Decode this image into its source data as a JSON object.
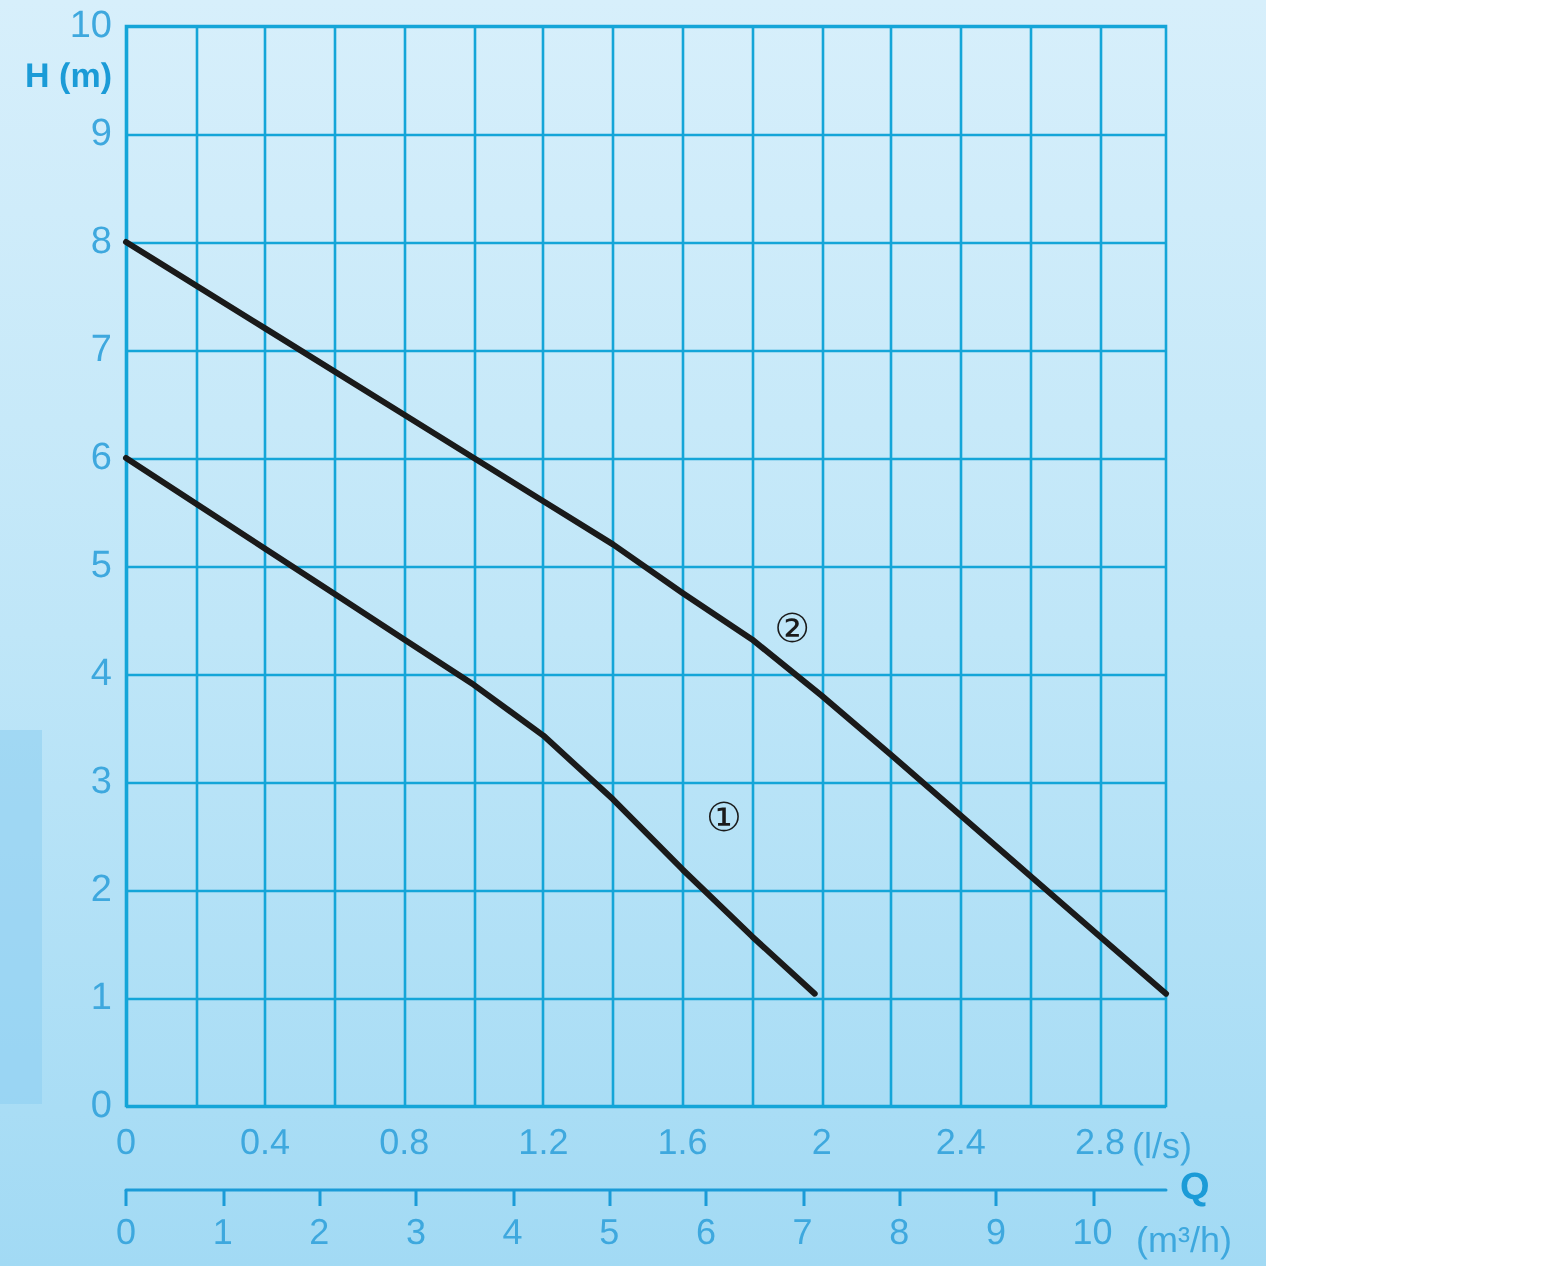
{
  "chart_data": {
    "type": "line",
    "xlabel": "(l/s)",
    "ylabel": "H (m)",
    "x2label": "(m³/h)",
    "xlim": [
      0,
      2.99
    ],
    "xticks": [
      0,
      {
        "value": 0.2,
        "label": null
      },
      0.4,
      {
        "value": 0.6,
        "label": null
      },
      0.8,
      {
        "value": 1.0,
        "label": null
      },
      1.2,
      {
        "value": 1.4,
        "label": null
      },
      1.6,
      {
        "value": 1.8,
        "label": null
      },
      2,
      {
        "value": 2.2,
        "label": null
      },
      2.4,
      {
        "value": 2.6,
        "label": null
      },
      2.8
    ],
    "x2lim": [
      0,
      10.76
    ],
    "x2ticks": [
      0,
      1,
      2,
      3,
      4,
      5,
      6,
      7,
      8,
      9,
      10
    ],
    "ylim": [
      0,
      10
    ],
    "yticks": [
      0,
      1,
      2,
      3,
      4,
      5,
      6,
      7,
      8,
      9,
      10
    ],
    "grid": true,
    "marker": "none",
    "line_style": "solid",
    "series": [
      {
        "name": "①",
        "color": "#1a1a1a",
        "x": [
          0,
          0.4,
          0.6,
          0.8,
          1.0,
          1.2,
          1.4,
          1.6,
          1.8,
          1.98
        ],
        "values": [
          6,
          5.16,
          4.74,
          4.32,
          3.9,
          3.43,
          2.84,
          2.19,
          1.57,
          1.04
        ]
      },
      {
        "name": "②",
        "color": "#1a1a1a",
        "x": [
          0,
          0.4,
          0.8,
          1.0,
          1.2,
          1.4,
          1.6,
          1.8,
          2.0,
          2.2,
          2.4,
          2.6,
          2.8,
          2.99
        ],
        "values": [
          8,
          7.2,
          6.4,
          6.0,
          5.6,
          5.2,
          4.75,
          4.32,
          3.8,
          3.25,
          2.69,
          2.13,
          1.57,
          1.04
        ]
      }
    ],
    "annotations": [
      "Q"
    ]
  }
}
